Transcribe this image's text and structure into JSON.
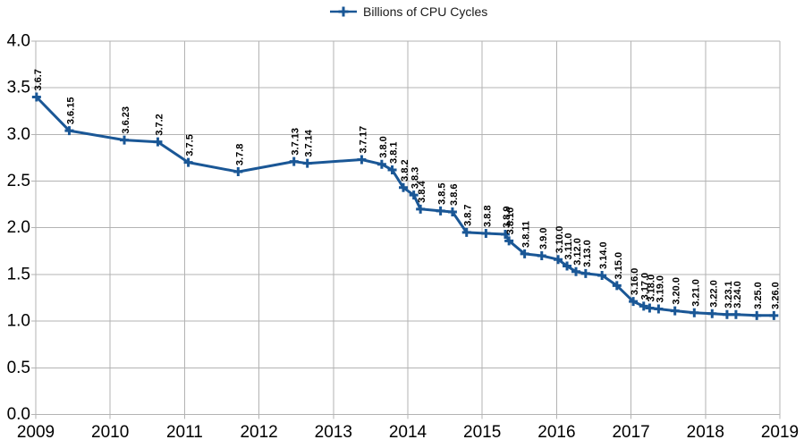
{
  "chart_data": {
    "type": "line",
    "title": "",
    "xlabel": "",
    "ylabel": "",
    "legend": {
      "label": "Billions of CPU Cycles",
      "position": "top-center"
    },
    "grid": true,
    "x_unit": "year",
    "xlim": [
      2009,
      2019
    ],
    "ylim": [
      0.0,
      4.0
    ],
    "x_ticks": [
      "2009",
      "2010",
      "2011",
      "2012",
      "2013",
      "2014",
      "2015",
      "2016",
      "2017",
      "2018",
      "2019"
    ],
    "y_ticks": [
      "0.0",
      "0.5",
      "1.0",
      "1.5",
      "2.0",
      "2.5",
      "3.0",
      "3.5",
      "4.0"
    ],
    "colors": {
      "line": "#1a5796",
      "grid": "#b3b3b3",
      "tick_label": "#000000",
      "data_label": "#000000",
      "background": "#ffffff"
    },
    "series": [
      {
        "name": "Billions of CPU Cycles",
        "marker": "plus",
        "points": [
          {
            "label": "3.6.7",
            "x": 2009.01,
            "y": 3.4
          },
          {
            "label": "3.6.15",
            "x": 2009.45,
            "y": 3.04
          },
          {
            "label": "3.6.23",
            "x": 2010.19,
            "y": 2.94
          },
          {
            "label": "3.7.2",
            "x": 2010.64,
            "y": 2.92
          },
          {
            "label": "3.7.5",
            "x": 2011.05,
            "y": 2.7
          },
          {
            "label": "3.7.8",
            "x": 2011.72,
            "y": 2.6
          },
          {
            "label": "3.7.13",
            "x": 2012.47,
            "y": 2.71
          },
          {
            "label": "3.7.14",
            "x": 2012.65,
            "y": 2.69
          },
          {
            "label": "3.7.17",
            "x": 2013.38,
            "y": 2.73
          },
          {
            "label": "3.8.0",
            "x": 2013.65,
            "y": 2.68
          },
          {
            "label": "3.8.1",
            "x": 2013.79,
            "y": 2.62
          },
          {
            "label": "3.8.2",
            "x": 2013.94,
            "y": 2.43
          },
          {
            "label": "3.8.3",
            "x": 2014.08,
            "y": 2.35
          },
          {
            "label": "3.8.4",
            "x": 2014.17,
            "y": 2.2
          },
          {
            "label": "3.8.5",
            "x": 2014.44,
            "y": 2.18
          },
          {
            "label": "3.8.6",
            "x": 2014.6,
            "y": 2.17
          },
          {
            "label": "3.8.7",
            "x": 2014.79,
            "y": 1.95
          },
          {
            "label": "3.8.8",
            "x": 2015.05,
            "y": 1.94
          },
          {
            "label": "3.8.9",
            "x": 2015.31,
            "y": 1.93
          },
          {
            "label": "3.8.10",
            "x": 2015.36,
            "y": 1.86
          },
          {
            "label": "3.8.11",
            "x": 2015.57,
            "y": 1.72
          },
          {
            "label": "3.9.0",
            "x": 2015.8,
            "y": 1.7
          },
          {
            "label": "3.10.0",
            "x": 2016.02,
            "y": 1.66
          },
          {
            "label": "3.11.0",
            "x": 2016.14,
            "y": 1.59
          },
          {
            "label": "3.12.0",
            "x": 2016.26,
            "y": 1.53
          },
          {
            "label": "3.13.0",
            "x": 2016.39,
            "y": 1.51
          },
          {
            "label": "3.14.0",
            "x": 2016.61,
            "y": 1.49
          },
          {
            "label": "3.15.0",
            "x": 2016.81,
            "y": 1.38
          },
          {
            "label": "3.16.0",
            "x": 2017.03,
            "y": 1.21
          },
          {
            "label": "3.17.0",
            "x": 2017.17,
            "y": 1.16
          },
          {
            "label": "3.18.0",
            "x": 2017.25,
            "y": 1.14
          },
          {
            "label": "3.19.0",
            "x": 2017.37,
            "y": 1.13
          },
          {
            "label": "3.20.0",
            "x": 2017.59,
            "y": 1.11
          },
          {
            "label": "3.21.0",
            "x": 2017.85,
            "y": 1.09
          },
          {
            "label": "3.22.0",
            "x": 2018.09,
            "y": 1.08
          },
          {
            "label": "3.23.1",
            "x": 2018.29,
            "y": 1.07
          },
          {
            "label": "3.24.0",
            "x": 2018.41,
            "y": 1.07
          },
          {
            "label": "3.25.0",
            "x": 2018.69,
            "y": 1.06
          },
          {
            "label": "3.26.0",
            "x": 2018.92,
            "y": 1.06
          }
        ]
      }
    ]
  }
}
